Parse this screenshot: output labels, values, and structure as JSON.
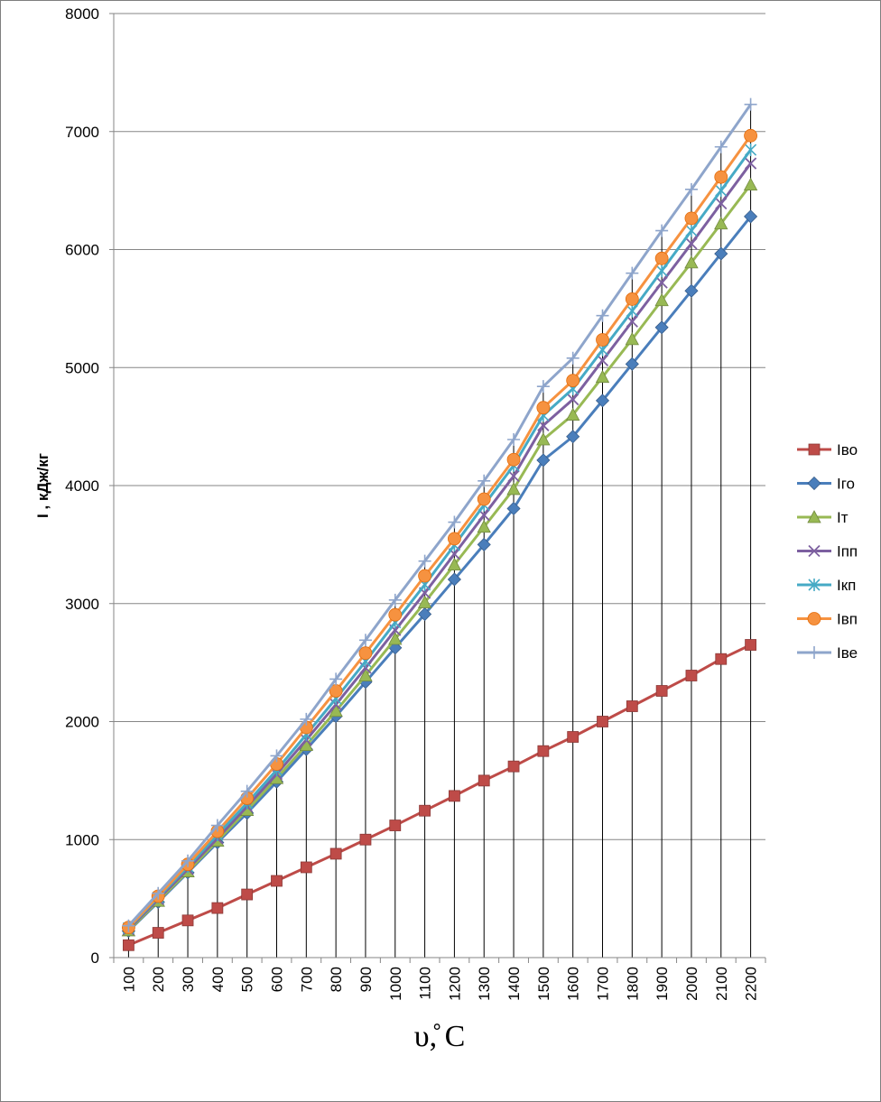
{
  "chart_data": {
    "type": "line",
    "title": "",
    "xlabel": "υ,̊ C",
    "ylabel": "I , кДж/кг",
    "ylim": [
      0,
      8000
    ],
    "yticks": [
      0,
      1000,
      2000,
      3000,
      4000,
      5000,
      6000,
      7000,
      8000
    ],
    "grid": {
      "horizontal": true,
      "vertical_drop_lines": true
    },
    "legend_position": "right",
    "categories": [
      "100",
      "200",
      "300",
      "400",
      "500",
      "600",
      "700",
      "800",
      "900",
      "1000",
      "1100",
      "1200",
      "1300",
      "1400",
      "1500",
      "1600",
      "1700",
      "1800",
      "1900",
      "2000",
      "2100",
      "2200"
    ],
    "series": [
      {
        "name": "Iво",
        "color": "#be4b48",
        "marker": "square",
        "values": [
          105,
          210,
          315,
          420,
          535,
          650,
          765,
          880,
          1000,
          1120,
          1245,
          1370,
          1500,
          1620,
          1750,
          1870,
          2000,
          2130,
          2260,
          2390,
          2530,
          2650
        ]
      },
      {
        "name": "Iго",
        "color": "#4a7ebb",
        "marker": "diamond",
        "values": [
          225,
          470,
          720,
          975,
          1225,
          1490,
          1765,
          2045,
          2335,
          2625,
          2910,
          3205,
          3500,
          3805,
          4215,
          4415,
          4720,
          5030,
          5340,
          5650,
          5965,
          6280
        ]
      },
      {
        "name": "Iт",
        "color": "#98b954",
        "marker": "triangle",
        "values": [
          230,
          480,
          730,
          990,
          1250,
          1520,
          1800,
          2090,
          2390,
          2700,
          3010,
          3330,
          3650,
          3970,
          4390,
          4600,
          4920,
          5240,
          5570,
          5890,
          6220,
          6550
        ]
      },
      {
        "name": "Iпп",
        "color": "#7d60a0",
        "marker": "x",
        "values": [
          240,
          495,
          750,
          1010,
          1280,
          1555,
          1845,
          2145,
          2455,
          2775,
          3090,
          3420,
          3750,
          4080,
          4510,
          4730,
          5060,
          5390,
          5720,
          6050,
          6390,
          6730
        ]
      },
      {
        "name": "Iкп",
        "color": "#46aac5",
        "marker": "star",
        "values": [
          250,
          510,
          770,
          1040,
          1310,
          1590,
          1890,
          2195,
          2510,
          2840,
          3160,
          3495,
          3835,
          4170,
          4595,
          4820,
          5150,
          5480,
          5820,
          6160,
          6500,
          6845
        ]
      },
      {
        "name": "Iвп",
        "color": "#f69240",
        "marker": "circle",
        "values": [
          255,
          520,
          790,
          1070,
          1350,
          1640,
          1950,
          2260,
          2580,
          2905,
          3235,
          3550,
          3885,
          4220,
          4660,
          4890,
          5235,
          5580,
          5925,
          6265,
          6615,
          6965
        ]
      },
      {
        "name": "Iве",
        "color": "#8ea5cb",
        "marker": "plus",
        "values": [
          270,
          545,
          820,
          1120,
          1410,
          1710,
          2020,
          2360,
          2690,
          3030,
          3360,
          3690,
          4040,
          4390,
          4840,
          5080,
          5440,
          5800,
          6160,
          6510,
          6870,
          7230
        ]
      }
    ]
  }
}
